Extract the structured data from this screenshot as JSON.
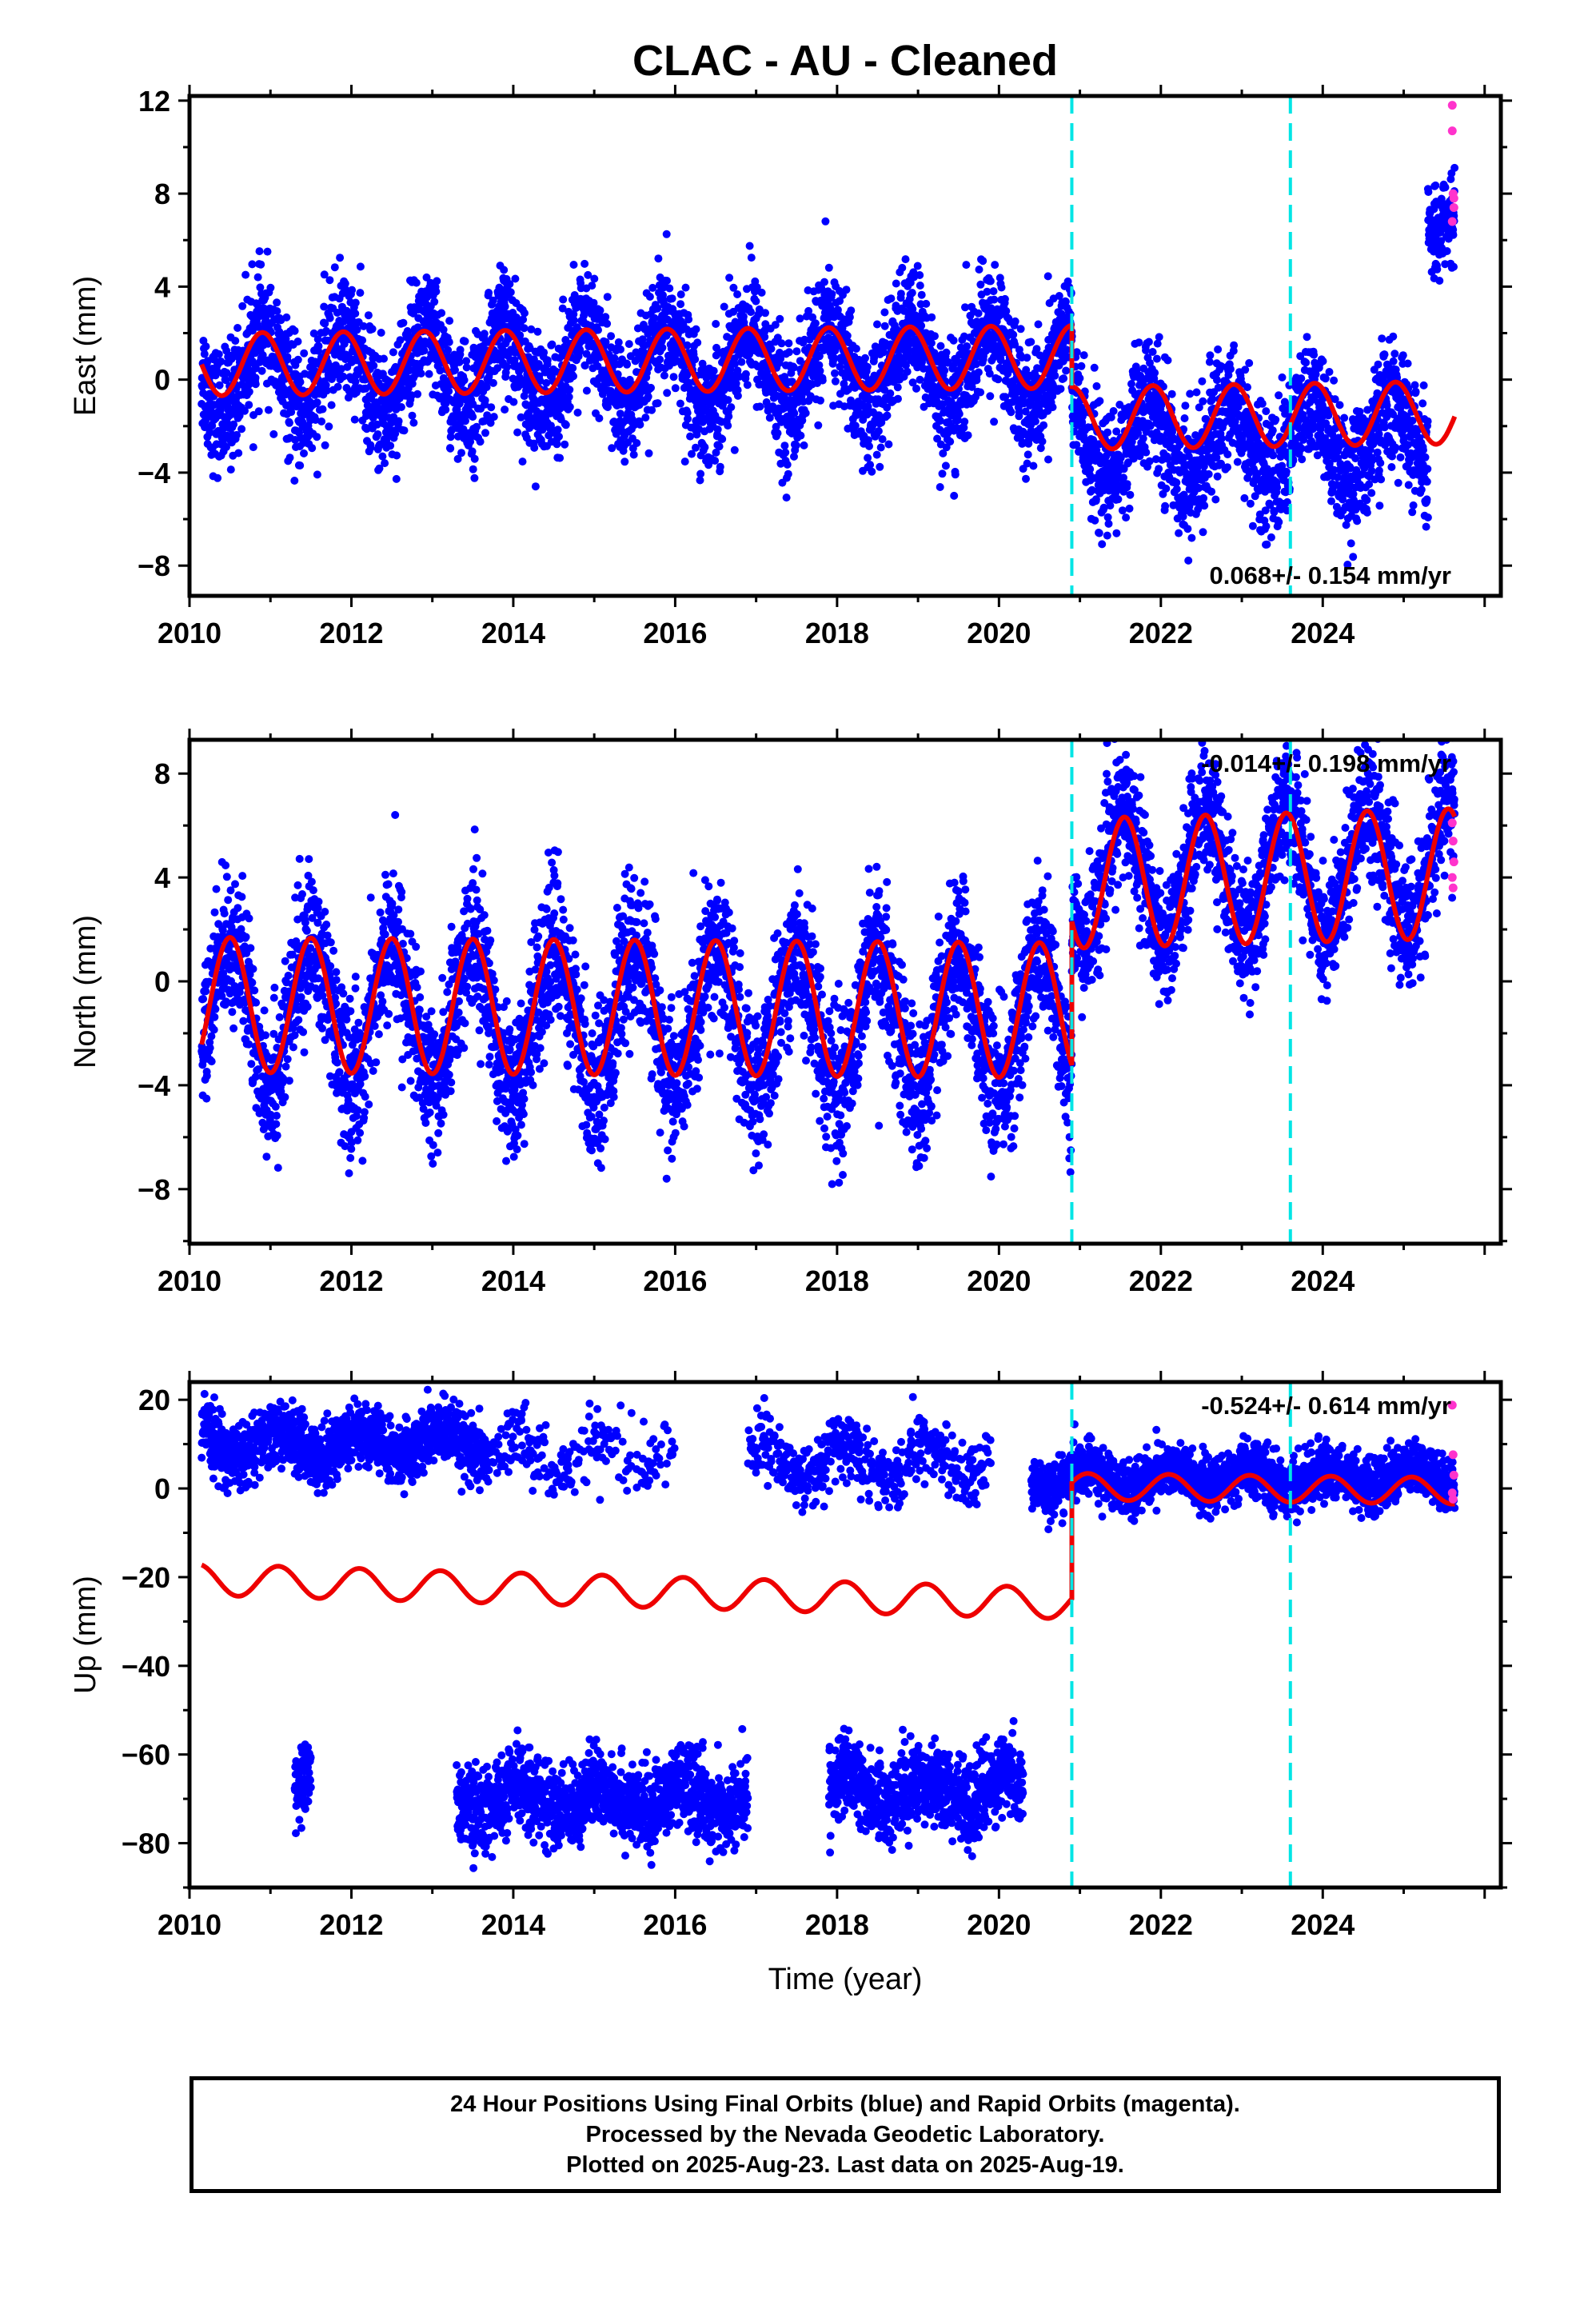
{
  "chart_data": {
    "type": "scatter",
    "title": "CLAC  - AU - Cleaned",
    "xlabel": "Time (year)",
    "xlim": [
      2010,
      2026.2
    ],
    "x_ticks": [
      2010,
      2012,
      2014,
      2016,
      2018,
      2020,
      2022,
      2024
    ],
    "breaks": [
      2020.9,
      2023.6
    ],
    "colors": {
      "final": "#0000ff",
      "rapid": "#ff33cc",
      "model": "#ee0000",
      "break": "#00e5e5"
    },
    "panels": [
      {
        "name": "east",
        "ylabel": "East (mm)",
        "ylim": [
          -9.3,
          12.2
        ],
        "y_ticks": [
          -8,
          -4,
          0,
          4,
          8,
          12
        ],
        "rate_label": "0.068+/- 0.154 mm/yr",
        "rate_position": "bottom-right",
        "data_start": 2010.15,
        "data_end": 2025.63,
        "segments": [
          {
            "start": 2010.15,
            "end": 2020.9,
            "offset": 0.3,
            "trend": 0.03,
            "amp": 1.7,
            "phase_peak": 0.9,
            "noise": 1.3
          },
          {
            "start": 2020.9,
            "end": 2025.3,
            "offset": -2.6,
            "trend": 0.0,
            "amp": 1.6,
            "phase_peak": 0.85,
            "noise": 1.3
          },
          {
            "start": 2025.3,
            "end": 2025.63,
            "offset": 7.0,
            "trend": 0.0,
            "amp": 0.5,
            "phase_peak": 0.85,
            "noise": 0.9
          }
        ],
        "model": {
          "start": 2010.15,
          "end": 2025.63,
          "segments": [
            {
              "start": 2010.15,
              "end": 2020.9,
              "offset": 0.65,
              "trend": 0.03,
              "amp": 1.35,
              "phase_peak": 0.9
            },
            {
              "start": 2020.9,
              "end": 2025.63,
              "offset": -2.2,
              "trend": 0.05,
              "amp": 1.35,
              "phase_peak": 0.9
            }
          ]
        },
        "rapid_points": [
          [
            2025.6,
            11.8
          ],
          [
            2025.6,
            10.7
          ],
          [
            2025.61,
            8.0
          ],
          [
            2025.62,
            7.8
          ],
          [
            2025.6,
            6.8
          ],
          [
            2025.62,
            7.4
          ]
        ]
      },
      {
        "name": "north",
        "ylabel": "North (mm)",
        "ylim": [
          -10.1,
          9.3
        ],
        "y_ticks": [
          -8,
          -4,
          0,
          4,
          8
        ],
        "rate_label": "-0.014+/- 0.198 mm/yr",
        "rate_position": "top-right",
        "data_start": 2010.15,
        "data_end": 2025.63,
        "segments": [
          {
            "start": 2010.15,
            "end": 2020.9,
            "offset": -1.1,
            "trend": -0.05,
            "amp": 2.7,
            "phase_peak": 0.5,
            "noise": 1.4
          },
          {
            "start": 2020.9,
            "end": 2025.63,
            "offset": 2.9,
            "trend": 0.1,
            "amp": 2.5,
            "phase_peak": 0.55,
            "noise": 1.2
          }
        ],
        "model": {
          "start": 2010.15,
          "end": 2025.63,
          "segments": [
            {
              "start": 2010.15,
              "end": 2020.9,
              "offset": -0.9,
              "trend": -0.02,
              "amp": 2.6,
              "phase_peak": 0.5
            },
            {
              "start": 2020.9,
              "end": 2025.63,
              "offset": 2.9,
              "trend": 0.08,
              "amp": 2.5,
              "phase_peak": 0.55
            }
          ]
        },
        "rapid_points": [
          [
            2025.6,
            6.1
          ],
          [
            2025.61,
            5.4
          ],
          [
            2025.62,
            4.6
          ],
          [
            2025.6,
            4.0
          ],
          [
            2025.61,
            3.6
          ]
        ]
      },
      {
        "name": "up",
        "ylabel": "Up (mm)",
        "ylim": [
          -90,
          24
        ],
        "y_ticks": [
          -80,
          -60,
          -40,
          -20,
          0,
          20
        ],
        "rate_label": "-0.524+/- 0.614 mm/yr",
        "rate_position": "top-right",
        "data_start": 2010.15,
        "data_end": 2025.63,
        "segments": [
          {
            "start": 2010.15,
            "end": 2013.7,
            "offset": 10.0,
            "trend": 0.0,
            "amp": 3.0,
            "phase_peak": 0.1,
            "noise": 3.5
          },
          {
            "start": 2013.7,
            "end": 2016.0,
            "offset": 8.0,
            "trend": 0.0,
            "amp": 3.0,
            "phase_peak": 0.1,
            "noise": 4.0,
            "density": 0.25
          },
          {
            "start": 2016.9,
            "end": 2019.9,
            "offset": 6.0,
            "trend": 0.0,
            "amp": 4.0,
            "phase_peak": 0.1,
            "noise": 3.5,
            "density": 0.45
          },
          {
            "start": 2020.4,
            "end": 2025.63,
            "offset": 1.0,
            "trend": 0.1,
            "amp": 2.0,
            "phase_peak": 0.1,
            "noise": 3.0
          },
          {
            "start": 2011.3,
            "end": 2011.5,
            "offset": -66,
            "trend": 0.0,
            "amp": 0.0,
            "phase_peak": 0.1,
            "noise": 4.0
          },
          {
            "start": 2013.3,
            "end": 2016.9,
            "offset": -70,
            "trend": 0.0,
            "amp": 3.0,
            "phase_peak": 0.1,
            "noise": 4.5
          },
          {
            "start": 2017.9,
            "end": 2020.3,
            "offset": -68,
            "trend": 0.0,
            "amp": 3.0,
            "phase_peak": 0.1,
            "noise": 4.5
          }
        ],
        "model": {
          "start": 2010.15,
          "end": 2025.63,
          "segments": [
            {
              "start": 2010.15,
              "end": 2020.9,
              "offset": -20.5,
              "trend": -0.5,
              "amp": 3.5,
              "phase_peak": 0.1
            },
            {
              "start": 2020.9,
              "end": 2025.63,
              "offset": 2.6,
              "trend": -0.2,
              "amp": 3.0,
              "phase_peak": 0.1
            }
          ]
        },
        "rapid_points": [
          [
            2025.6,
            18.8
          ],
          [
            2025.61,
            7.6
          ],
          [
            2025.62,
            3.0
          ],
          [
            2025.6,
            -1.0
          ],
          [
            2025.61,
            -2.4
          ]
        ]
      }
    ]
  },
  "footer": {
    "line1": "24 Hour Positions Using Final Orbits (blue) and Rapid Orbits (magenta).",
    "line2": "Processed by the Nevada Geodetic Laboratory.",
    "line3": "Plotted on 2025-Aug-23. Last data on 2025-Aug-19."
  }
}
